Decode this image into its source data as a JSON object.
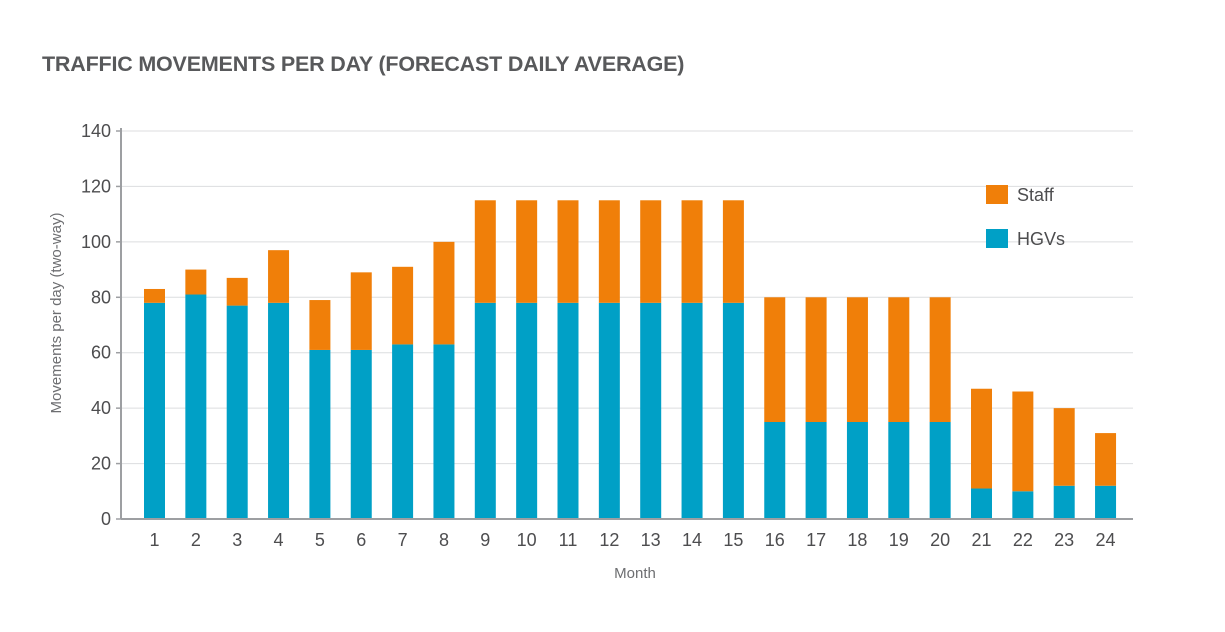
{
  "chart_data": {
    "type": "bar",
    "stacked": true,
    "title": "TRAFFIC MOVEMENTS PER DAY (FORECAST DAILY AVERAGE)",
    "xlabel": "Month",
    "ylabel": "Movements per day (two-way)",
    "ylim": [
      0,
      140
    ],
    "yticks": [
      0,
      20,
      40,
      60,
      80,
      100,
      120,
      140
    ],
    "grid": true,
    "legend_position": "right",
    "categories": [
      "1",
      "2",
      "3",
      "4",
      "5",
      "6",
      "7",
      "8",
      "9",
      "10",
      "11",
      "12",
      "13",
      "14",
      "15",
      "16",
      "17",
      "18",
      "19",
      "20",
      "21",
      "22",
      "23",
      "24"
    ],
    "series": [
      {
        "name": "HGVs",
        "color": "#00a0c6",
        "values": [
          78,
          81,
          77,
          78,
          61,
          61,
          63,
          63,
          78,
          78,
          78,
          78,
          78,
          78,
          78,
          35,
          35,
          35,
          35,
          35,
          11,
          10,
          12,
          12
        ]
      },
      {
        "name": "Staff",
        "color": "#f07f09",
        "values": [
          5,
          9,
          10,
          19,
          18,
          28,
          28,
          37,
          37,
          37,
          37,
          37,
          37,
          37,
          37,
          45,
          45,
          45,
          45,
          45,
          36,
          36,
          28,
          19
        ]
      }
    ],
    "legend": [
      {
        "name": "Staff",
        "color": "#f07f09"
      },
      {
        "name": "HGVs",
        "color": "#00a0c6"
      }
    ]
  }
}
